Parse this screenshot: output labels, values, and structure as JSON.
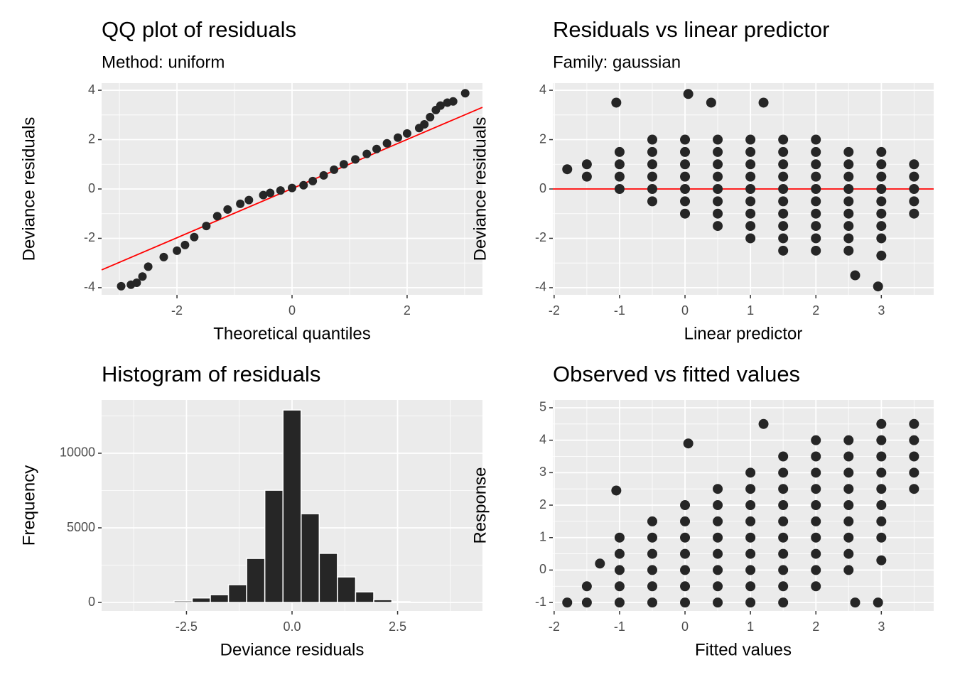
{
  "chart_data": [
    {
      "type": "scatter",
      "title": "QQ plot of residuals",
      "subtitle": "Method: uniform",
      "x_label": "Theoretical quantiles",
      "y_label": "Deviance residuals",
      "color": "#262626",
      "x": [
        -2.97,
        -2.8,
        -2.7,
        -2.6,
        -2.5,
        -2.23,
        -2.0,
        -1.86,
        -1.7,
        -1.49,
        -1.3,
        -1.12,
        -0.9,
        -0.75,
        -0.5,
        -0.38,
        -0.2,
        0,
        0.2,
        0.36,
        0.55,
        0.73,
        0.9,
        1.1,
        1.3,
        1.47,
        1.65,
        1.84,
        2.0,
        2.21,
        2.3,
        2.4,
        2.5,
        2.58,
        2.7,
        2.8,
        3.01
      ],
      "values": [
        -3.94,
        -3.88,
        -3.8,
        -3.55,
        -3.15,
        -2.76,
        -2.5,
        -2.27,
        -1.95,
        -1.5,
        -1.1,
        -0.83,
        -0.6,
        -0.45,
        -0.25,
        -0.16,
        -0.06,
        0.04,
        0.15,
        0.32,
        0.55,
        0.78,
        1.0,
        1.2,
        1.42,
        1.62,
        1.85,
        2.08,
        2.25,
        2.47,
        2.62,
        2.91,
        3.2,
        3.38,
        3.5,
        3.55,
        3.88
      ],
      "reference_line": {
        "x": [
          -3.31,
          3.31
        ],
        "values": [
          -3.28,
          3.31
        ],
        "color": "#ff0000"
      },
      "xlim": [
        -3.31,
        3.31
      ],
      "ylim": [
        -4.29,
        4.29
      ],
      "xticks": [
        -2,
        0,
        2
      ],
      "yticks": [
        -4,
        -2,
        0,
        2,
        4
      ],
      "grid": true
    },
    {
      "type": "scatter",
      "title": "Residuals vs linear predictor",
      "subtitle": "Family: gaussian",
      "x_label": "Linear predictor",
      "y_label": "Deviance residuals",
      "color": "#262626",
      "x": [
        -1.8,
        -1.5,
        -1.5,
        -1,
        -1,
        -1,
        -1,
        -0.5,
        -0.5,
        -0.5,
        -0.5,
        -0.5,
        -0.5,
        0,
        0,
        0,
        0,
        0,
        0,
        0,
        0.5,
        0.5,
        0.5,
        0.5,
        0.5,
        0.5,
        0.5,
        0.5,
        1,
        1,
        1,
        1,
        1,
        1,
        1,
        1,
        1,
        1.5,
        1.5,
        1.5,
        1.5,
        1.5,
        1.5,
        1.5,
        1.5,
        1.5,
        1.5,
        2,
        2,
        2,
        2,
        2,
        2,
        2,
        2,
        2,
        2,
        2.5,
        2.5,
        2.5,
        2.5,
        2.5,
        2.5,
        2.5,
        2.5,
        2.5,
        3,
        3,
        3,
        3,
        3,
        3,
        3,
        3,
        3.5,
        3.5,
        3.5,
        3.5,
        3.5,
        -1.05,
        0.4,
        0.05,
        1.2,
        2.6,
        2.95,
        3.0
      ],
      "values": [
        0.8,
        0.5,
        1.0,
        0,
        0.5,
        1,
        1.5,
        -0.5,
        0,
        0.5,
        1,
        1.5,
        2,
        -1,
        -0.5,
        0,
        0.5,
        1,
        1.5,
        2,
        -1.5,
        -1,
        -0.5,
        0,
        0.5,
        1,
        1.5,
        2,
        -2,
        -1.5,
        -1,
        -0.5,
        0,
        0.5,
        1,
        1.5,
        2,
        -2.5,
        -2,
        -1.5,
        -1,
        -0.5,
        0,
        0.5,
        1,
        1.5,
        2,
        -2.5,
        -2,
        -1.5,
        -1,
        -0.5,
        0,
        0.5,
        1,
        1.5,
        2,
        -2.5,
        -2,
        -1.5,
        -1,
        -0.5,
        0,
        0.5,
        1,
        1.5,
        -2,
        -1.5,
        -1,
        -0.5,
        0,
        0.5,
        1,
        1.5,
        -1,
        -0.5,
        0,
        0.5,
        1,
        3.5,
        3.5,
        3.85,
        3.5,
        -3.5,
        -3.95,
        -2.7
      ],
      "hline": {
        "value": 0,
        "color": "#ff0000"
      },
      "xlim": [
        -2.02,
        3.8
      ],
      "ylim": [
        -4.29,
        4.29
      ],
      "xticks": [
        -2,
        -1,
        0,
        1,
        2,
        3
      ],
      "yticks": [
        -4,
        -2,
        0,
        2,
        4
      ],
      "grid": true
    },
    {
      "type": "histogram",
      "title": "Histogram of residuals",
      "x_label": "Deviance residuals",
      "y_label": "Frequency",
      "color": "#262626",
      "edge_color": "#ffffff",
      "bins": [
        -3.655,
        -3.225,
        -2.795,
        -2.365,
        -1.935,
        -1.505,
        -1.075,
        -0.645,
        -0.215,
        0.215,
        0.645,
        1.075,
        1.505,
        1.935,
        2.365,
        2.795,
        3.225,
        3.655
      ],
      "values": [
        5,
        20,
        100,
        300,
        520,
        1190,
        2950,
        7520,
        12900,
        5950,
        3290,
        1710,
        710,
        190,
        50,
        10,
        5
      ],
      "xlim": [
        -4.51,
        4.51
      ],
      "ylim": [
        -571,
        13571
      ],
      "xticks": [
        -2.5,
        {
          "value": 0,
          "label": "0.0"
        },
        2.5
      ],
      "yticks": [
        0,
        5000,
        10000
      ],
      "grid": true
    },
    {
      "type": "scatter",
      "title": "Observed vs fitted values",
      "x_label": "Fitted values",
      "y_label": "Response",
      "color": "#262626",
      "x": [
        -1.8,
        -1.5,
        -1.5,
        -1,
        -1,
        -1,
        -1,
        -1,
        -0.5,
        -0.5,
        -0.5,
        -0.5,
        -0.5,
        -0.5,
        0,
        0,
        0,
        0,
        0,
        0,
        0,
        0.5,
        0.5,
        0.5,
        0.5,
        0.5,
        0.5,
        0.5,
        0.5,
        1,
        1,
        1,
        1,
        1,
        1,
        1,
        1,
        1,
        1.5,
        1.5,
        1.5,
        1.5,
        1.5,
        1.5,
        1.5,
        1.5,
        1.5,
        1.5,
        2,
        2,
        2,
        2,
        2,
        2,
        2,
        2,
        2,
        2,
        2.5,
        2.5,
        2.5,
        2.5,
        2.5,
        2.5,
        2.5,
        2.5,
        2.5,
        3,
        3,
        3,
        3,
        3,
        3,
        3,
        3,
        3.5,
        3.5,
        3.5,
        3.5,
        3.5,
        -1.05,
        0.05,
        1.2,
        2.6,
        2.95,
        3.0,
        -1.3
      ],
      "values": [
        -1,
        -1,
        -0.5,
        -1,
        -0.5,
        0,
        0.5,
        1,
        -1,
        -0.5,
        0,
        0.5,
        1,
        1.5,
        -1,
        -0.5,
        0,
        0.5,
        1,
        1.5,
        2,
        -1,
        -0.5,
        0,
        0.5,
        1,
        1.5,
        2,
        2.5,
        -1,
        -0.5,
        0,
        0.5,
        1,
        1.5,
        2,
        2.5,
        3,
        -1,
        -0.5,
        0,
        0.5,
        1,
        1.5,
        2,
        2.5,
        3,
        3.5,
        -0.5,
        0,
        0.5,
        1,
        1.5,
        2,
        2.5,
        3,
        3.5,
        4,
        0,
        0.5,
        1,
        1.5,
        2,
        2.5,
        3,
        3.5,
        4,
        1,
        1.5,
        2,
        2.5,
        3,
        3.5,
        4,
        4.5,
        2.5,
        3,
        3.5,
        4,
        4.5,
        2.45,
        3.9,
        4.5,
        -1,
        -1,
        0.3,
        0.2
      ],
      "xlim": [
        -2.02,
        3.8
      ],
      "ylim": [
        -1.26,
        5.24
      ],
      "xticks": [
        -2,
        -1,
        0,
        1,
        2,
        3
      ],
      "yticks": [
        -1,
        0,
        1,
        2,
        3,
        4,
        5
      ],
      "grid": true
    }
  ]
}
